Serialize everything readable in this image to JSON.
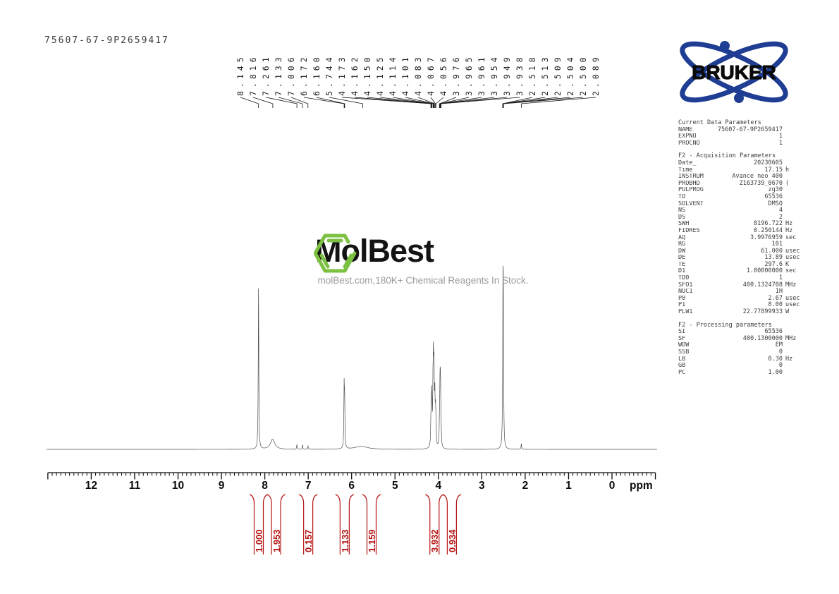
{
  "sample_id": "75607-67-9P2659417",
  "bruker": {
    "text": "BRUKER",
    "blue": "#1e3d93"
  },
  "watermark": {
    "title": "MolBest",
    "subtitle": "molBest.com,180K+ Chemical Reagents In Stock.",
    "green": "#7cc142"
  },
  "colors": {
    "spectrum_line": "#4d4d4d",
    "fan_line": "#1a1a1a",
    "axis": "#0b0b0b",
    "integral_red": "#b41414",
    "param_text": "#3d3d3d"
  },
  "peak_labels_ppm": [
    "8.145",
    "7.816",
    "7.261",
    "7.133",
    "7.006",
    "6.172",
    "6.160",
    "5.744",
    "4.173",
    "4.162",
    "4.150",
    "4.125",
    "4.114",
    "4.101",
    "4.083",
    "4.067",
    "4.056",
    "3.976",
    "3.965",
    "3.961",
    "3.954",
    "3.949",
    "3.938",
    "2.518",
    "2.513",
    "2.509",
    "2.504",
    "2.500",
    "2.089"
  ],
  "integrals": [
    {
      "value": "1.000",
      "label_ppm": 8.14
    },
    {
      "value": "1.953",
      "label_ppm": 7.74
    },
    {
      "value": "0.157",
      "label_ppm": 7.0
    },
    {
      "value": "1.133",
      "label_ppm": 6.16
    },
    {
      "value": "1.159",
      "label_ppm": 5.54
    },
    {
      "value": "3.932",
      "label_ppm": 4.09
    },
    {
      "value": "0.934",
      "label_ppm": 3.69
    }
  ],
  "parameters": {
    "sections": [
      {
        "title": "Current Data Parameters",
        "rows": [
          {
            "n": "NAME",
            "v": "75607-67-9P2659417",
            "u": ""
          },
          {
            "n": "EXPNO",
            "v": "1",
            "u": ""
          },
          {
            "n": "PROCNO",
            "v": "1",
            "u": ""
          }
        ]
      },
      {
        "title": "F2 - Acquisition Parameters",
        "rows": [
          {
            "n": "Date_",
            "v": "20230605",
            "u": ""
          },
          {
            "n": "Time",
            "v": "17.15",
            "u": "h"
          },
          {
            "n": "INSTRUM",
            "v": "Avance neo 400",
            "u": ""
          },
          {
            "n": "PROBHD",
            "v": "Z163739_0670",
            "u": "("
          },
          {
            "n": "PULPROG",
            "v": "zg30",
            "u": ""
          },
          {
            "n": "TD",
            "v": "65536",
            "u": ""
          },
          {
            "n": "SOLVENT",
            "v": "DMSO",
            "u": ""
          },
          {
            "n": "NS",
            "v": "4",
            "u": ""
          },
          {
            "n": "DS",
            "v": "2",
            "u": ""
          },
          {
            "n": "SWH",
            "v": "8196.722",
            "u": "Hz"
          },
          {
            "n": "FIDRES",
            "v": "0.250144",
            "u": "Hz"
          },
          {
            "n": "AQ",
            "v": "3.9976959",
            "u": "sec"
          },
          {
            "n": "RG",
            "v": "101",
            "u": ""
          },
          {
            "n": "DW",
            "v": "61.000",
            "u": "usec"
          },
          {
            "n": "DE",
            "v": "13.89",
            "u": "usec"
          },
          {
            "n": "TE",
            "v": "297.6",
            "u": "K"
          },
          {
            "n": "D1",
            "v": "1.00000000",
            "u": "sec"
          },
          {
            "n": "TD0",
            "v": "1",
            "u": ""
          },
          {
            "n": "SFO1",
            "v": "400.1324708",
            "u": "MHz"
          },
          {
            "n": "NUC1",
            "v": "1H",
            "u": ""
          },
          {
            "n": "P0",
            "v": "2.67",
            "u": "usec"
          },
          {
            "n": "P1",
            "v": "8.00",
            "u": "usec"
          },
          {
            "n": "PLW1",
            "v": "22.77899933",
            "u": "W"
          }
        ]
      },
      {
        "title": "F2 - Processing parameters",
        "rows": [
          {
            "n": "SI",
            "v": "65536",
            "u": ""
          },
          {
            "n": "SF",
            "v": "400.1300000",
            "u": "MHz"
          },
          {
            "n": "WDW",
            "v": "EM",
            "u": ""
          },
          {
            "n": "SSB",
            "v": "0",
            "u": ""
          },
          {
            "n": "LB",
            "v": "0.30",
            "u": "Hz"
          },
          {
            "n": "GB",
            "v": "0",
            "u": ""
          },
          {
            "n": "PC",
            "v": "1.00",
            "u": ""
          }
        ]
      }
    ]
  },
  "chart_data": {
    "type": "line",
    "title": "1H NMR spectrum printout (Bruker Avance neo 400, DMSO)",
    "xlabel": "ppm",
    "x_axis": {
      "ticks": [
        12,
        11,
        10,
        9,
        8,
        7,
        6,
        5,
        4,
        3,
        2,
        1,
        0
      ],
      "range_ppm": [
        13.0,
        -1.0
      ],
      "minor_step": 0.1,
      "unit": "ppm"
    },
    "peak_list_ppm": [
      8.145,
      7.816,
      7.261,
      7.133,
      7.006,
      6.172,
      6.16,
      5.744,
      4.173,
      4.162,
      4.15,
      4.125,
      4.114,
      4.101,
      4.083,
      4.067,
      4.056,
      3.976,
      3.965,
      3.961,
      3.954,
      3.949,
      3.938,
      2.518,
      2.513,
      2.509,
      2.504,
      2.5,
      2.089
    ],
    "integrals": [
      {
        "region_ppm": 8.15,
        "value": 1.0
      },
      {
        "region_ppm": 7.82,
        "value": 1.953
      },
      {
        "region_ppm": 7.1,
        "value": 0.157
      },
      {
        "region_ppm": 6.17,
        "value": 1.133
      },
      {
        "region_ppm": 5.74,
        "value": 1.159
      },
      {
        "region_ppm": 4.11,
        "value": 3.932
      },
      {
        "region_ppm": 3.95,
        "value": 0.934
      }
    ],
    "visible_peaks": [
      {
        "ppm": 8.145,
        "rel_height": 1.0,
        "width_ppm": 0.006
      },
      {
        "ppm": 7.82,
        "rel_height": 0.062,
        "width_ppm": 0.06
      },
      {
        "ppm": 7.261,
        "rel_height": 0.028,
        "width_ppm": 0.005
      },
      {
        "ppm": 7.133,
        "rel_height": 0.028,
        "width_ppm": 0.005
      },
      {
        "ppm": 7.006,
        "rel_height": 0.022,
        "width_ppm": 0.005
      },
      {
        "ppm": 6.172,
        "rel_height": 0.36,
        "width_ppm": 0.005
      },
      {
        "ppm": 6.16,
        "rel_height": 0.26,
        "width_ppm": 0.005
      },
      {
        "ppm": 5.78,
        "rel_height": 0.018,
        "width_ppm": 0.18
      },
      {
        "ppm": 4.173,
        "rel_height": 0.12,
        "width_ppm": 0.005
      },
      {
        "ppm": 4.162,
        "rel_height": 0.2,
        "width_ppm": 0.005
      },
      {
        "ppm": 4.15,
        "rel_height": 0.27,
        "width_ppm": 0.005
      },
      {
        "ppm": 4.125,
        "rel_height": 0.29,
        "width_ppm": 0.005
      },
      {
        "ppm": 4.114,
        "rel_height": 0.44,
        "width_ppm": 0.005
      },
      {
        "ppm": 4.101,
        "rel_height": 0.4,
        "width_ppm": 0.005
      },
      {
        "ppm": 4.083,
        "rel_height": 0.29,
        "width_ppm": 0.005
      },
      {
        "ppm": 4.067,
        "rel_height": 0.18,
        "width_ppm": 0.005
      },
      {
        "ppm": 4.056,
        "rel_height": 0.11,
        "width_ppm": 0.005
      },
      {
        "ppm": 3.976,
        "rel_height": 0.1,
        "width_ppm": 0.005
      },
      {
        "ppm": 3.965,
        "rel_height": 0.17,
        "width_ppm": 0.005
      },
      {
        "ppm": 3.961,
        "rel_height": 0.19,
        "width_ppm": 0.005
      },
      {
        "ppm": 3.954,
        "rel_height": 0.2,
        "width_ppm": 0.005
      },
      {
        "ppm": 3.949,
        "rel_height": 0.16,
        "width_ppm": 0.005
      },
      {
        "ppm": 3.938,
        "rel_height": 0.08,
        "width_ppm": 0.005
      },
      {
        "ppm": 2.518,
        "rel_height": 0.15,
        "width_ppm": 0.004
      },
      {
        "ppm": 2.513,
        "rel_height": 0.33,
        "width_ppm": 0.004
      },
      {
        "ppm": 2.509,
        "rel_height": 0.55,
        "width_ppm": 0.004
      },
      {
        "ppm": 2.504,
        "rel_height": 0.33,
        "width_ppm": 0.004
      },
      {
        "ppm": 2.5,
        "rel_height": 0.15,
        "width_ppm": 0.004
      },
      {
        "ppm": 2.089,
        "rel_height": 0.035,
        "width_ppm": 0.005
      }
    ]
  }
}
